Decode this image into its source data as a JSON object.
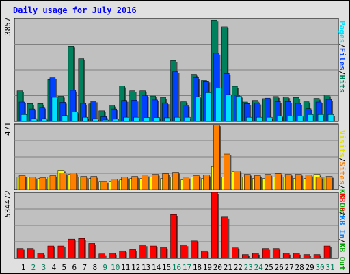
{
  "title": "Daily usage for July 2016",
  "colors": {
    "hits": "#00805c",
    "files": "#0040ff",
    "pages": "#00e0ff",
    "visits": "#ffff00",
    "sites": "#ff8000",
    "kbin": "#0080ff",
    "kbout": "#00a000",
    "kbf": "#ff0000",
    "weekday": "#000000",
    "weekend": "#00805c",
    "panel_bg": "#c0c0c0",
    "frame_bg": "#e0e0e0"
  },
  "panels": {
    "top": {
      "max_label": "3857",
      "legend": [
        "Pages",
        "/",
        "Files",
        "/",
        "Hits"
      ]
    },
    "mid": {
      "max_label": "471",
      "legend": [
        "Visits",
        "/",
        "Sites",
        "/",
        "KB Out"
      ]
    },
    "bot": {
      "max_label": "534472",
      "legend": [
        "KB F",
        "/",
        "KB In",
        "/",
        "KB Out"
      ]
    }
  },
  "chart_data": [
    {
      "type": "bar",
      "title": "Daily usage for July 2016",
      "ylim": [
        0,
        3857
      ],
      "categories": [
        "1",
        "2",
        "3",
        "4",
        "5",
        "6",
        "7",
        "8",
        "9",
        "10",
        "11",
        "12",
        "13",
        "14",
        "15",
        "16",
        "17",
        "18",
        "19",
        "20",
        "21",
        "22",
        "23",
        "24",
        "25",
        "26",
        "27",
        "28",
        "29",
        "30",
        "31"
      ],
      "weekend_days": [
        "2",
        "3",
        "9",
        "10",
        "16",
        "17",
        "23",
        "24",
        "30",
        "31"
      ],
      "series": [
        {
          "name": "Hits",
          "values": [
            1140,
            660,
            660,
            1560,
            940,
            2820,
            2350,
            650,
            390,
            600,
            1320,
            1140,
            1140,
            950,
            900,
            2280,
            730,
            1760,
            1530,
            3800,
            3550,
            1310,
            720,
            780,
            850,
            930,
            920,
            890,
            730,
            860,
            990
          ]
        },
        {
          "name": "Files",
          "values": [
            720,
            460,
            520,
            1630,
            710,
            1160,
            670,
            760,
            170,
            460,
            780,
            790,
            960,
            800,
            690,
            1860,
            600,
            1640,
            1510,
            2550,
            1790,
            980,
            660,
            680,
            870,
            740,
            740,
            670,
            470,
            720,
            820
          ]
        },
        {
          "name": "Pages",
          "values": [
            250,
            100,
            100,
            900,
            210,
            350,
            150,
            100,
            50,
            80,
            150,
            150,
            140,
            140,
            130,
            150,
            150,
            920,
            1070,
            1240,
            1000,
            940,
            150,
            150,
            150,
            200,
            200,
            200,
            250,
            250,
            250
          ]
        }
      ]
    },
    {
      "type": "bar",
      "ylim": [
        0,
        471
      ],
      "categories": [
        "1",
        "2",
        "3",
        "4",
        "5",
        "6",
        "7",
        "8",
        "9",
        "10",
        "11",
        "12",
        "13",
        "14",
        "15",
        "16",
        "17",
        "18",
        "19",
        "20",
        "21",
        "22",
        "23",
        "24",
        "25",
        "26",
        "27",
        "28",
        "29",
        "30",
        "31"
      ],
      "series": [
        {
          "name": "Visits",
          "values": [
            90,
            90,
            80,
            90,
            140,
            110,
            90,
            80,
            60,
            60,
            70,
            80,
            80,
            90,
            80,
            90,
            70,
            90,
            80,
            165,
            90,
            130,
            90,
            80,
            80,
            90,
            90,
            80,
            80,
            110,
            90
          ]
        },
        {
          "name": "Sites",
          "values": [
            100,
            90,
            85,
            100,
            120,
            120,
            95,
            95,
            60,
            75,
            90,
            95,
            105,
            110,
            115,
            125,
            90,
            100,
            105,
            465,
            255,
            135,
            110,
            100,
            110,
            115,
            110,
            110,
            105,
            90,
            95
          ]
        }
      ]
    },
    {
      "type": "bar",
      "ylim": [
        0,
        534472
      ],
      "categories": [
        "1",
        "2",
        "3",
        "4",
        "5",
        "6",
        "7",
        "8",
        "9",
        "10",
        "11",
        "12",
        "13",
        "14",
        "15",
        "16",
        "17",
        "18",
        "19",
        "20",
        "21",
        "22",
        "23",
        "24",
        "25",
        "26",
        "27",
        "28",
        "29",
        "30",
        "31"
      ],
      "series": [
        {
          "name": "KB F",
          "values": [
            80000,
            80000,
            40000,
            100000,
            100000,
            155000,
            160000,
            120000,
            35000,
            40000,
            60000,
            70000,
            110000,
            100000,
            90000,
            355000,
            110000,
            140000,
            60000,
            534472,
            335000,
            85000,
            30000,
            40000,
            80000,
            80000,
            40000,
            40000,
            30000,
            30000,
            100000
          ]
        }
      ]
    }
  ]
}
